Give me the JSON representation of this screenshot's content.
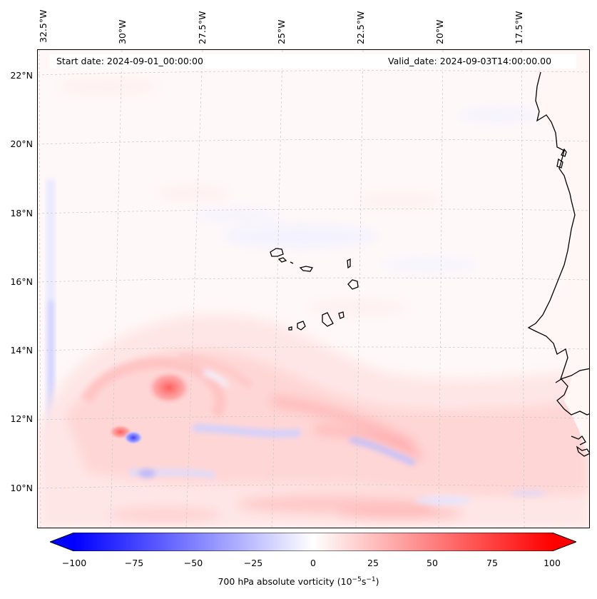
{
  "map": {
    "start_date": "Start date: 2024-09-01_00:00:00",
    "valid_date": "Valid_date: 2024-09-03T14:00:00.00",
    "lon_ticks": [
      "32.5°W",
      "30°W",
      "27.5°W",
      "25°W",
      "22.5°W",
      "20°W",
      "17.5°W"
    ],
    "lat_ticks": [
      "22°N",
      "20°N",
      "18°N",
      "16°N",
      "14°N",
      "12°N",
      "10°N"
    ],
    "field": "700 hPa absolute vorticity",
    "features": [
      "coastline-west-africa",
      "cape-verde-islands",
      "vorticity-maximum",
      "vorticity-minimum"
    ]
  },
  "colorbar": {
    "label_prefix": "700 hPa absolute vorticity (10",
    "label_exp1": "−5",
    "label_mid": "s",
    "label_exp2": "−1",
    "label_suffix": ")",
    "ticks": [
      "−100",
      "−75",
      "−50",
      "−25",
      "0",
      "25",
      "50",
      "75",
      "100"
    ],
    "range": [
      -100,
      100
    ],
    "colormap": "bwr",
    "extend": "both",
    "min_color": "#0000ff",
    "mid_color": "#ffffff",
    "max_color": "#ff0000"
  }
}
